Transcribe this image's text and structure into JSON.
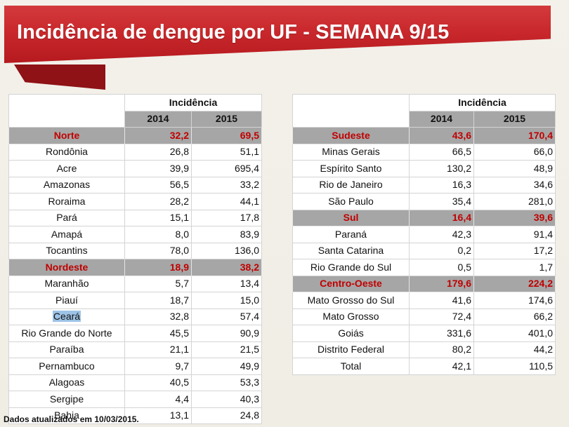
{
  "title": "Incidência de dengue por UF - SEMANA 9/15",
  "footnote": "Dados atualizados em 10/03/2015.",
  "highlighted_row": "Ceará",
  "colors": {
    "banner": "#c9282c",
    "region_text": "#c00000",
    "region_bg": "#a6a6a6",
    "highlight": "#9dc3e6"
  },
  "header": {
    "group": "Incidência",
    "year1": "2014",
    "year2": "2015"
  },
  "left_table": [
    {
      "name": "Norte",
      "v2014": "32,2",
      "v2015": "69,5",
      "region": true
    },
    {
      "name": "Rondônia",
      "v2014": "26,8",
      "v2015": "51,1"
    },
    {
      "name": "Acre",
      "v2014": "39,9",
      "v2015": "695,4"
    },
    {
      "name": "Amazonas",
      "v2014": "56,5",
      "v2015": "33,2"
    },
    {
      "name": "Roraima",
      "v2014": "28,2",
      "v2015": "44,1"
    },
    {
      "name": "Pará",
      "v2014": "15,1",
      "v2015": "17,8"
    },
    {
      "name": "Amapá",
      "v2014": "8,0",
      "v2015": "83,9"
    },
    {
      "name": "Tocantins",
      "v2014": "78,0",
      "v2015": "136,0"
    },
    {
      "name": "Nordeste",
      "v2014": "18,9",
      "v2015": "38,2",
      "region": true
    },
    {
      "name": "Maranhão",
      "v2014": "5,7",
      "v2015": "13,4"
    },
    {
      "name": "Piauí",
      "v2014": "18,7",
      "v2015": "15,0"
    },
    {
      "name": "Ceará",
      "v2014": "32,8",
      "v2015": "57,4",
      "highlight": true
    },
    {
      "name": "Rio Grande do Norte",
      "v2014": "45,5",
      "v2015": "90,9"
    },
    {
      "name": "Paraíba",
      "v2014": "21,1",
      "v2015": "21,5"
    },
    {
      "name": "Pernambuco",
      "v2014": "9,7",
      "v2015": "49,9"
    },
    {
      "name": "Alagoas",
      "v2014": "40,5",
      "v2015": "53,3"
    },
    {
      "name": "Sergipe",
      "v2014": "4,4",
      "v2015": "40,3"
    },
    {
      "name": "Bahia",
      "v2014": "13,1",
      "v2015": "24,8"
    }
  ],
  "right_table": [
    {
      "name": "Sudeste",
      "v2014": "43,6",
      "v2015": "170,4",
      "region": true
    },
    {
      "name": "Minas Gerais",
      "v2014": "66,5",
      "v2015": "66,0"
    },
    {
      "name": "Espírito Santo",
      "v2014": "130,2",
      "v2015": "48,9"
    },
    {
      "name": "Rio de Janeiro",
      "v2014": "16,3",
      "v2015": "34,6"
    },
    {
      "name": "São Paulo",
      "v2014": "35,4",
      "v2015": "281,0"
    },
    {
      "name": "Sul",
      "v2014": "16,4",
      "v2015": "39,6",
      "region": true
    },
    {
      "name": "Paraná",
      "v2014": "42,3",
      "v2015": "91,4"
    },
    {
      "name": "Santa Catarina",
      "v2014": "0,2",
      "v2015": "17,2"
    },
    {
      "name": "Rio Grande do Sul",
      "v2014": "0,5",
      "v2015": "1,7"
    },
    {
      "name": "Centro-Oeste",
      "v2014": "179,6",
      "v2015": "224,2",
      "region": true
    },
    {
      "name": "Mato Grosso do Sul",
      "v2014": "41,6",
      "v2015": "174,6"
    },
    {
      "name": "Mato Grosso",
      "v2014": "72,4",
      "v2015": "66,2"
    },
    {
      "name": "Goiás",
      "v2014": "331,6",
      "v2015": "401,0"
    },
    {
      "name": "Distrito Federal",
      "v2014": "80,2",
      "v2015": "44,2"
    },
    {
      "name": "Total",
      "v2014": "42,1",
      "v2015": "110,5"
    }
  ]
}
